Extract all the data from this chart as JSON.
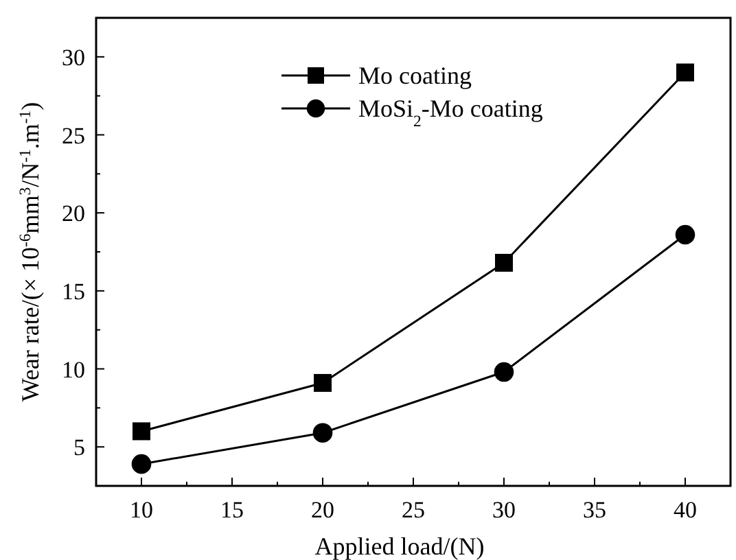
{
  "chart_data": {
    "type": "line",
    "xlabel": "Applied load/(N)",
    "ylabel": "Wear rate/(× 10$^{-6}$mm$^{3}$/N$^{-1}$.m$^{-1}$)",
    "x": [
      10,
      20,
      30,
      40
    ],
    "series": [
      {
        "name": "Mo coating",
        "color": "#000000",
        "marker": "square",
        "values": [
          6.0,
          9.1,
          16.8,
          29.0
        ]
      },
      {
        "name": "MoSi$_{2}$-Mo coating",
        "color": "#000000",
        "marker": "circle",
        "values": [
          3.9,
          5.9,
          9.8,
          18.6
        ]
      }
    ],
    "xlim": [
      7.5,
      42.5
    ],
    "xticks": [
      10,
      {
        "value": 12.5,
        "label": null
      },
      15,
      {
        "value": 17.5,
        "label": null
      },
      20,
      {
        "value": 22.5,
        "label": null
      },
      25,
      {
        "value": 27.5,
        "label": null
      },
      30,
      {
        "value": 32.5,
        "label": null
      },
      35,
      {
        "value": 37.5,
        "label": null
      },
      40
    ],
    "ylim": [
      2.5,
      32.5
    ],
    "yticks": [
      5,
      {
        "value": 7.5,
        "label": null
      },
      10,
      {
        "value": 12.5,
        "label": null
      },
      15,
      {
        "value": 17.5,
        "label": null
      },
      20,
      {
        "value": 22.5,
        "label": null
      },
      25,
      {
        "value": 27.5,
        "label": null
      },
      30
    ],
    "legend": "top",
    "grid": false,
    "line_style": "solid"
  }
}
